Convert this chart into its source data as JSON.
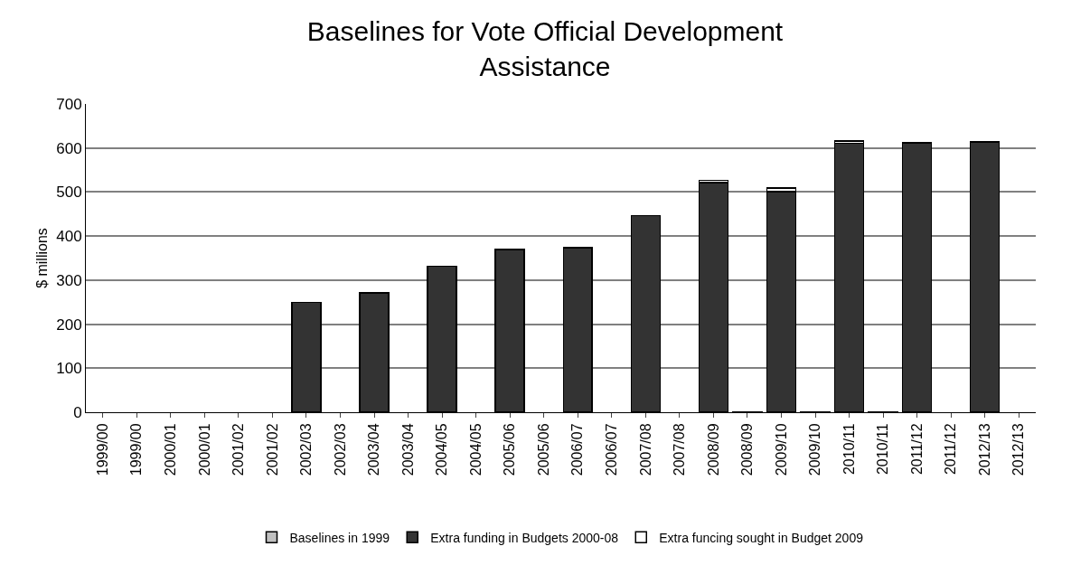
{
  "chart_data": {
    "type": "bar",
    "stacked": true,
    "title": "Baselines for Vote Official Development\nAssistance",
    "ylabel": "$ millions",
    "categories": [
      "1999/00",
      "1999/00",
      "2000/01",
      "2000/01",
      "2001/02",
      "2001/02",
      "2002/03",
      "2002/03",
      "2003/04",
      "2003/04",
      "2004/05",
      "2004/05",
      "2005/06",
      "2005/06",
      "2006/07",
      "2006/07",
      "2007/08",
      "2007/08",
      "2008/09",
      "2008/09",
      "2009/10",
      "2009/10",
      "2010/11",
      "2010/11",
      "2011/12",
      "2011/12",
      "2012/13",
      "2012/13"
    ],
    "series": [
      {
        "name": "Baselines in 1999",
        "color": "#c0c0c0",
        "values": [
          null,
          null,
          null,
          null,
          null,
          null,
          null,
          null,
          null,
          null,
          null,
          null,
          null,
          null,
          null,
          null,
          null,
          null,
          null,
          1,
          null,
          1,
          null,
          1,
          null,
          null,
          null,
          null
        ]
      },
      {
        "name": "Extra funding in Budgets 2000-08",
        "color": "#333333",
        "values": [
          null,
          null,
          null,
          null,
          null,
          null,
          249,
          null,
          271,
          null,
          332,
          null,
          369,
          null,
          374,
          null,
          446,
          null,
          521,
          null,
          501,
          null,
          611,
          null,
          612,
          null,
          613,
          null
        ]
      },
      {
        "name": "Extra funcing sought in Budget 2009",
        "color": "#ffffff",
        "values": [
          null,
          null,
          null,
          null,
          null,
          null,
          null,
          null,
          null,
          null,
          null,
          null,
          null,
          null,
          null,
          null,
          null,
          null,
          6,
          null,
          8,
          null,
          5,
          null,
          null,
          null,
          2,
          null
        ]
      }
    ],
    "ylim": [
      0,
      700
    ],
    "yticks": [
      0,
      100,
      200,
      300,
      400,
      500,
      600,
      700
    ],
    "grid": "y",
    "legend": "bottom"
  }
}
